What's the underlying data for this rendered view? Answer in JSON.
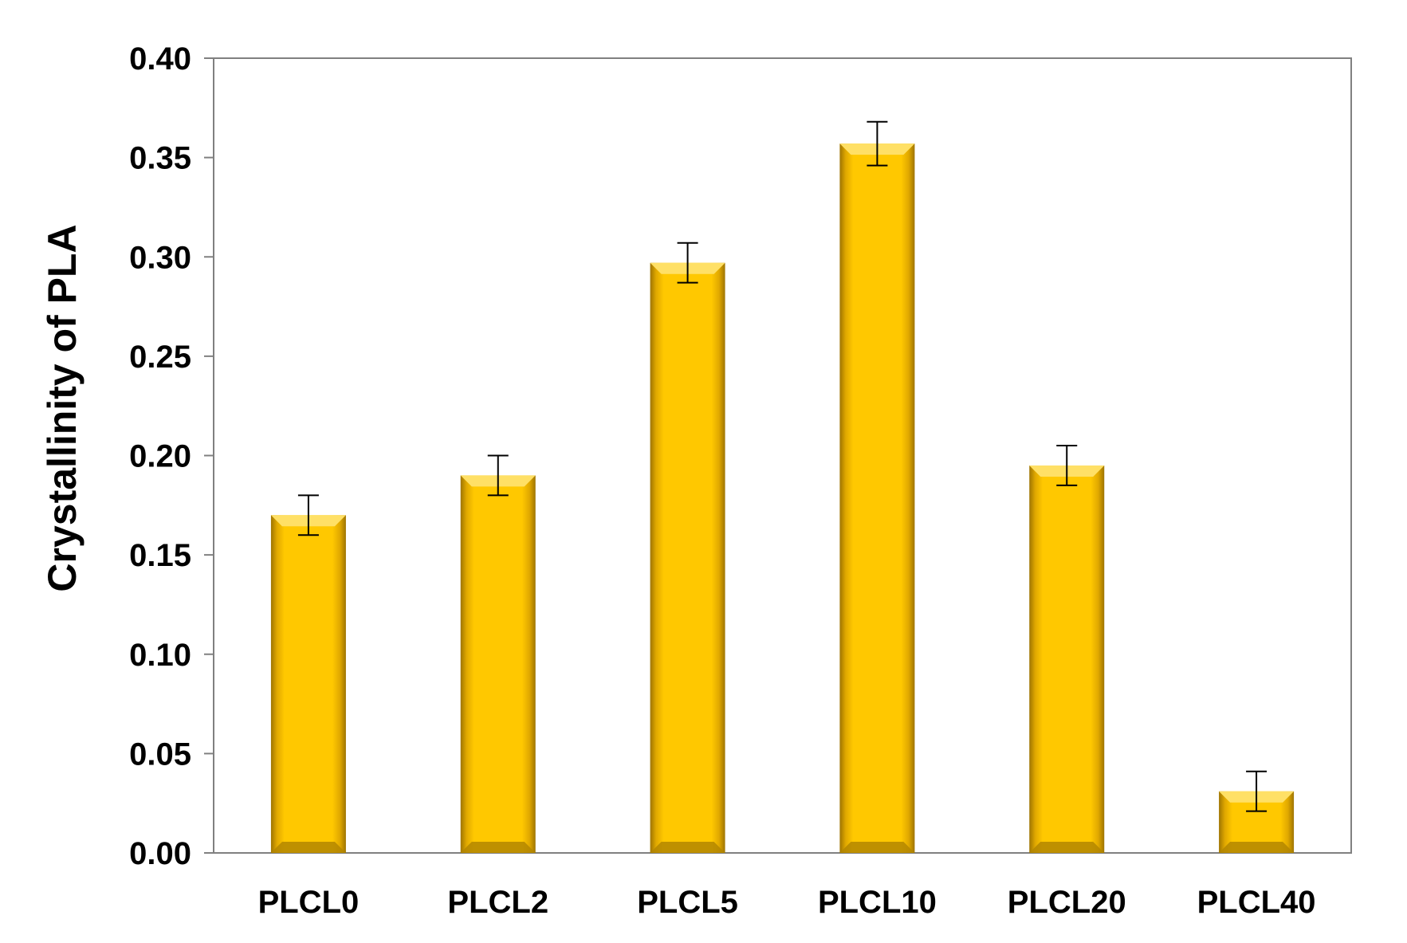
{
  "chart_data": {
    "type": "bar",
    "title": "",
    "xlabel": "",
    "ylabel": "Crystallinity of PLA",
    "categories": [
      "PLCL0",
      "PLCL2",
      "PLCL5",
      "PLCL10",
      "PLCL20",
      "PLCL40"
    ],
    "values": [
      0.17,
      0.19,
      0.297,
      0.357,
      0.195,
      0.031
    ],
    "errors": [
      0.01,
      0.01,
      0.01,
      0.011,
      0.01,
      0.01
    ],
    "ylim": [
      0,
      0.4
    ],
    "yticks": [
      "0.00",
      "0.05",
      "0.10",
      "0.15",
      "0.20",
      "0.25",
      "0.30",
      "0.35",
      "0.40"
    ],
    "ytick_values": [
      0,
      0.05,
      0.1,
      0.15,
      0.2,
      0.25,
      0.3,
      0.35,
      0.4
    ],
    "grid": false,
    "legend": "none",
    "colors": {
      "bar_fill": "#FFC800",
      "bar_edge_light": "#FFE066",
      "bar_edge_dark": "#B38600",
      "axis": "#808080",
      "error_bar": "#000000"
    }
  }
}
